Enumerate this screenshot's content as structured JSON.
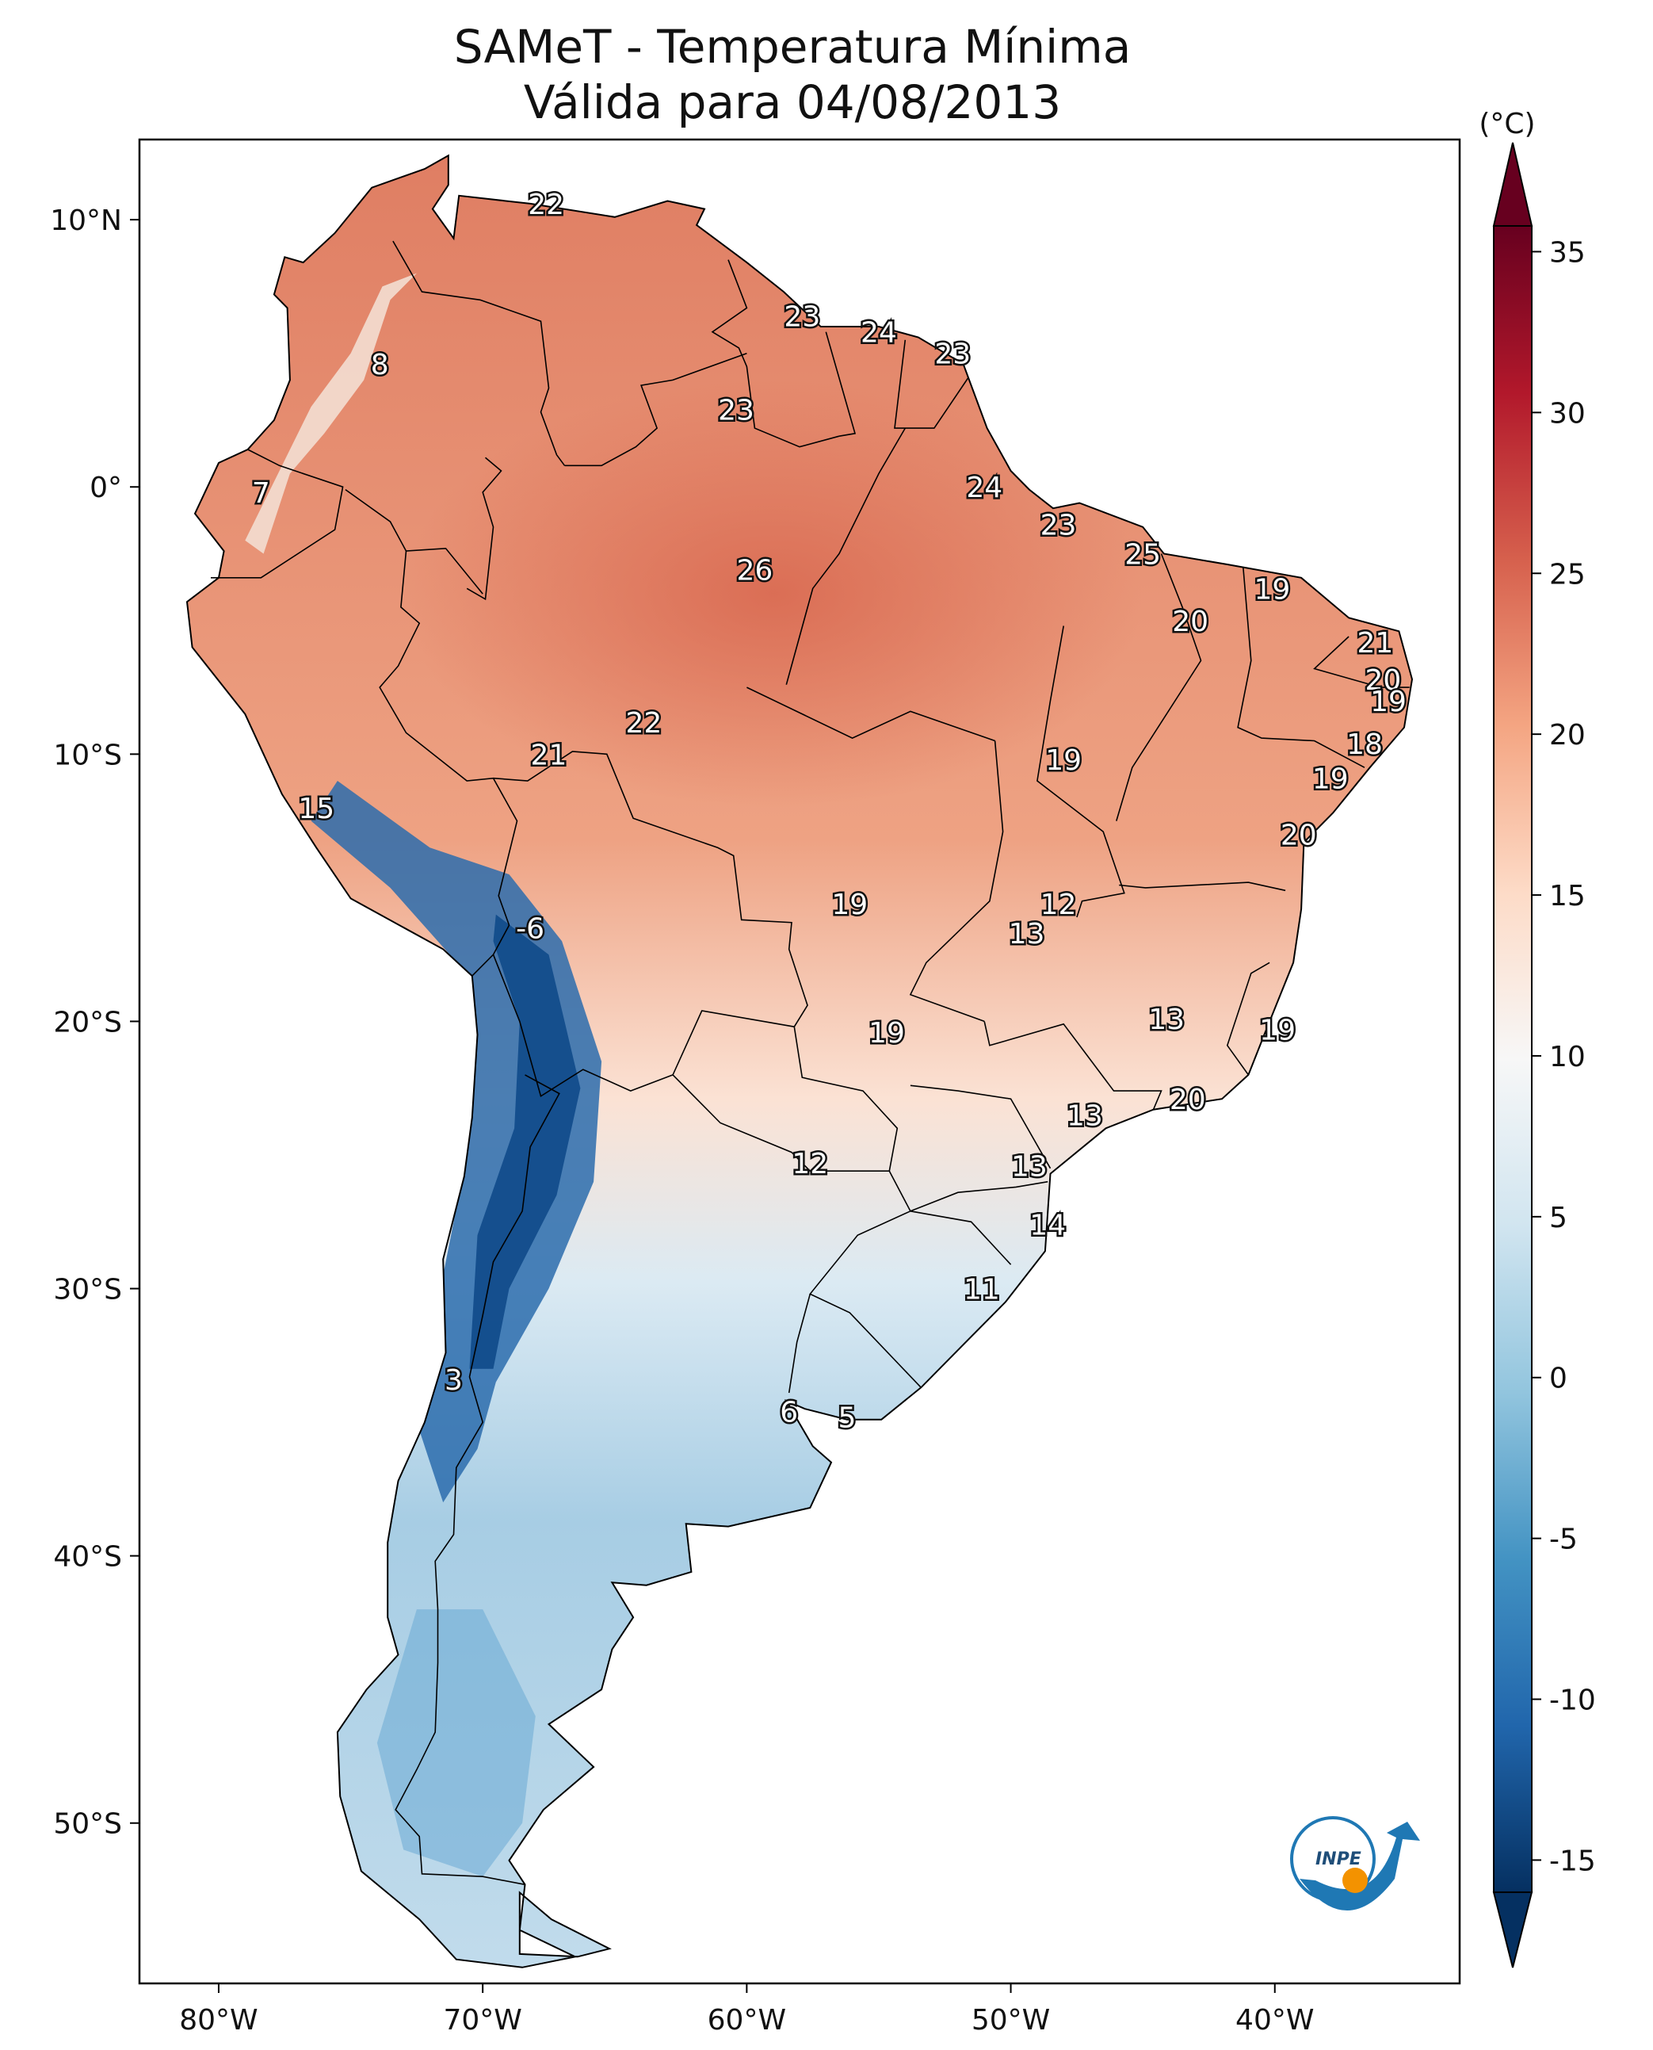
{
  "title": {
    "line1": "SAMeT - Temperatura Mínima",
    "line2": "Válida para 04/08/2013"
  },
  "map": {
    "lon_range": [
      -83,
      -33
    ],
    "lat_range": [
      -56,
      13
    ],
    "lon_ticks": [
      {
        "value": -80,
        "label": "80°W"
      },
      {
        "value": -70,
        "label": "70°W"
      },
      {
        "value": -60,
        "label": "60°W"
      },
      {
        "value": -50,
        "label": "50°W"
      },
      {
        "value": -40,
        "label": "40°W"
      }
    ],
    "lat_ticks": [
      {
        "value": 10,
        "label": "10°N"
      },
      {
        "value": 0,
        "label": "0°"
      },
      {
        "value": -10,
        "label": "10°S"
      },
      {
        "value": -20,
        "label": "20°S"
      },
      {
        "value": -30,
        "label": "30°S"
      },
      {
        "value": -40,
        "label": "40°S"
      },
      {
        "value": -50,
        "label": "50°S"
      }
    ],
    "station_values": [
      {
        "lon": -67.6,
        "lat": 10.6,
        "text": "22"
      },
      {
        "lon": -57.9,
        "lat": 6.4,
        "text": "23"
      },
      {
        "lon": -55.0,
        "lat": 5.8,
        "text": "24"
      },
      {
        "lon": -52.2,
        "lat": 5.0,
        "text": "23"
      },
      {
        "lon": -60.4,
        "lat": 2.9,
        "text": "23"
      },
      {
        "lon": -73.9,
        "lat": 4.6,
        "text": "8"
      },
      {
        "lon": -51.0,
        "lat": 0.0,
        "text": "24"
      },
      {
        "lon": -78.4,
        "lat": -0.2,
        "text": "7"
      },
      {
        "lon": -48.2,
        "lat": -1.4,
        "text": "23"
      },
      {
        "lon": -45.0,
        "lat": -2.5,
        "text": "25"
      },
      {
        "lon": -59.7,
        "lat": -3.1,
        "text": "26"
      },
      {
        "lon": -40.1,
        "lat": -3.8,
        "text": "19"
      },
      {
        "lon": -43.2,
        "lat": -5.0,
        "text": "20"
      },
      {
        "lon": -36.2,
        "lat": -5.8,
        "text": "21"
      },
      {
        "lon": -35.9,
        "lat": -7.2,
        "text": "20"
      },
      {
        "lon": -35.7,
        "lat": -8.0,
        "text": "19"
      },
      {
        "lon": -63.9,
        "lat": -8.8,
        "text": "22"
      },
      {
        "lon": -36.6,
        "lat": -9.6,
        "text": "18"
      },
      {
        "lon": -67.5,
        "lat": -10.0,
        "text": "21"
      },
      {
        "lon": -48.0,
        "lat": -10.2,
        "text": "19"
      },
      {
        "lon": -37.9,
        "lat": -10.9,
        "text": "19"
      },
      {
        "lon": -76.3,
        "lat": -12.0,
        "text": "15"
      },
      {
        "lon": -39.1,
        "lat": -13.0,
        "text": "20"
      },
      {
        "lon": -56.1,
        "lat": -15.6,
        "text": "19"
      },
      {
        "lon": -48.2,
        "lat": -15.6,
        "text": "12"
      },
      {
        "lon": -49.4,
        "lat": -16.7,
        "text": "13"
      },
      {
        "lon": -68.2,
        "lat": -16.5,
        "text": "-6"
      },
      {
        "lon": -44.1,
        "lat": -19.9,
        "text": "13"
      },
      {
        "lon": -39.9,
        "lat": -20.3,
        "text": "19"
      },
      {
        "lon": -54.7,
        "lat": -20.4,
        "text": "19"
      },
      {
        "lon": -43.3,
        "lat": -22.9,
        "text": "20"
      },
      {
        "lon": -47.2,
        "lat": -23.5,
        "text": "13"
      },
      {
        "lon": -57.6,
        "lat": -25.3,
        "text": "12"
      },
      {
        "lon": -49.3,
        "lat": -25.4,
        "text": "13"
      },
      {
        "lon": -48.6,
        "lat": -27.6,
        "text": "14"
      },
      {
        "lon": -51.1,
        "lat": -30.0,
        "text": "11"
      },
      {
        "lon": -71.1,
        "lat": -33.4,
        "text": "3"
      },
      {
        "lon": -58.4,
        "lat": -34.6,
        "text": "6"
      },
      {
        "lon": -56.2,
        "lat": -34.8,
        "text": "5"
      }
    ]
  },
  "colorbar": {
    "unit": "(°C)",
    "range": [
      -17,
      38
    ],
    "ticks": [
      {
        "value": 35,
        "label": "35"
      },
      {
        "value": 30,
        "label": "30"
      },
      {
        "value": 25,
        "label": "25"
      },
      {
        "value": 20,
        "label": "20"
      },
      {
        "value": 15,
        "label": "15"
      },
      {
        "value": 10,
        "label": "10"
      },
      {
        "value": 5,
        "label": "5"
      },
      {
        "value": 0,
        "label": "0"
      },
      {
        "value": -5,
        "label": "-5"
      },
      {
        "value": -10,
        "label": "-10"
      },
      {
        "value": -15,
        "label": "-15"
      }
    ],
    "colors": [
      "#053061",
      "#2166ac",
      "#4393c3",
      "#92c5de",
      "#d1e5f0",
      "#f7f7f7",
      "#fddbc7",
      "#f4a582",
      "#d6604d",
      "#b2182b",
      "#67001f"
    ]
  },
  "logo": {
    "text": "INPE"
  }
}
